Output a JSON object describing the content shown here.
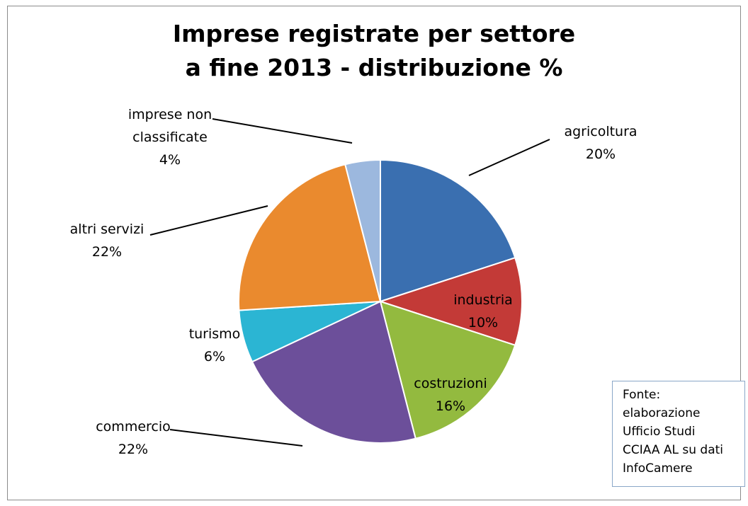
{
  "chart_data": {
    "type": "pie",
    "title_lines": [
      "Imprese registrate per settore",
      "a fine 2013 - distribuzione %"
    ],
    "slices": [
      {
        "label_lines": [
          "agricoltura"
        ],
        "value_text": "20%",
        "value": 20,
        "color": "#3a6fb0"
      },
      {
        "label_lines": [
          "industria"
        ],
        "value_text": "10%",
        "value": 10,
        "color": "#c33a37"
      },
      {
        "label_lines": [
          "costruzioni"
        ],
        "value_text": "16%",
        "value": 16,
        "color": "#93ba3f"
      },
      {
        "label_lines": [
          "commercio"
        ],
        "value_text": "22%",
        "value": 22,
        "color": "#6c4f9a"
      },
      {
        "label_lines": [
          "turismo"
        ],
        "value_text": "6%",
        "value": 6,
        "color": "#2bb5d3"
      },
      {
        "label_lines": [
          "altri servizi"
        ],
        "value_text": "22%",
        "value": 22,
        "color": "#ea8a2e"
      },
      {
        "label_lines": [
          "imprese non",
          "classificate"
        ],
        "value_text": "4%",
        "value": 4,
        "color": "#9cb8de"
      }
    ]
  },
  "source_note": {
    "lines": [
      "Fonte:",
      "elaborazione",
      "Ufficio Studi",
      "CCIAA AL su dati",
      "InfoCamere"
    ]
  }
}
